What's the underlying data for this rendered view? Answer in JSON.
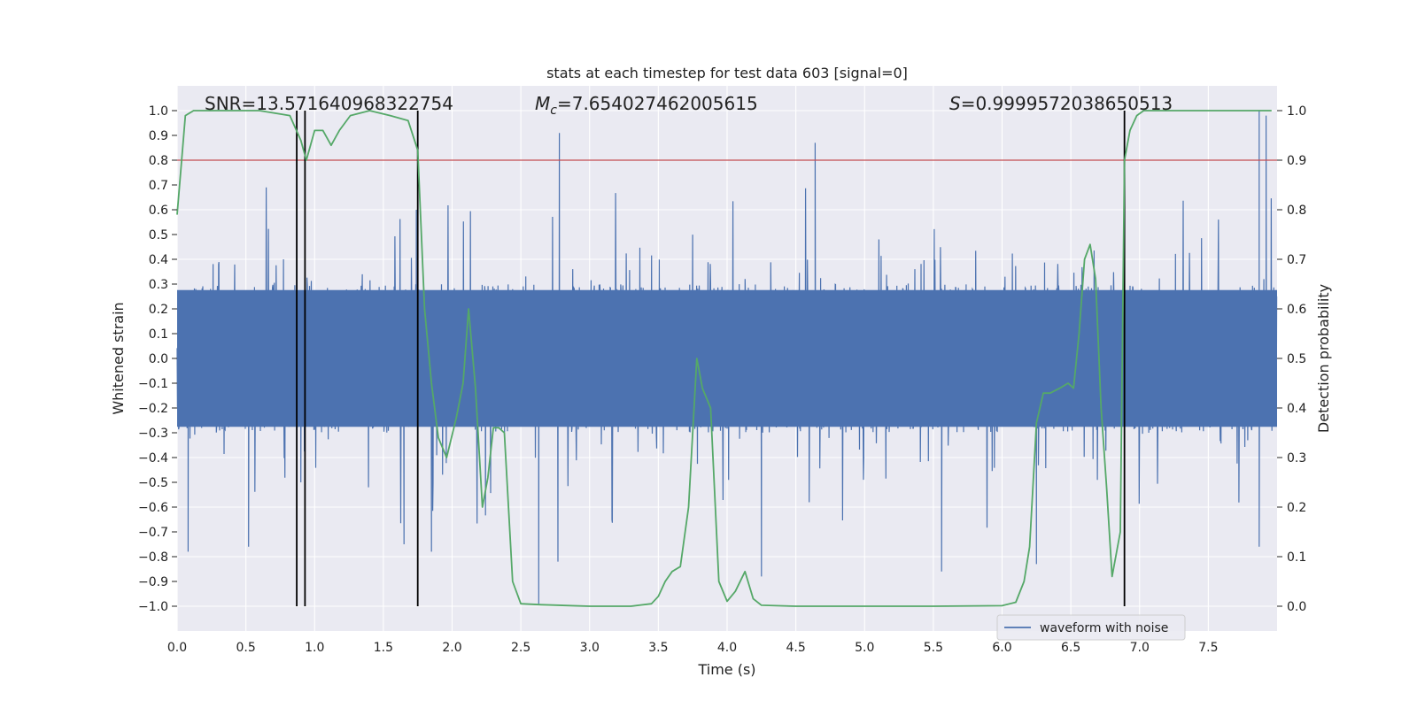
{
  "chart_data": {
    "type": "line",
    "title": "stats at each timestep for test data 603 [signal=0]",
    "xlabel": "Time (s)",
    "ylabel": "Whitened strain",
    "y2label": "Detection probability",
    "xlim": [
      0,
      8
    ],
    "ylim": [
      -1.1,
      1.1
    ],
    "y2lim": [
      -0.05,
      1.05
    ],
    "x_ticks": [
      "0.0",
      "0.5",
      "1.0",
      "1.5",
      "2.0",
      "2.5",
      "3.0",
      "3.5",
      "4.0",
      "4.5",
      "5.0",
      "5.5",
      "6.0",
      "6.5",
      "7.0",
      "7.5"
    ],
    "y_ticks": [
      "1.0",
      "0.9",
      "0.8",
      "0.7",
      "0.6",
      "0.5",
      "0.4",
      "0.3",
      "0.2",
      "0.1",
      "0.0",
      "−0.1",
      "−0.2",
      "−0.3",
      "−0.4",
      "−0.5",
      "−0.6",
      "−0.7",
      "−0.8",
      "−0.9",
      "−1.0"
    ],
    "y2_ticks": [
      "1.0",
      "0.9",
      "0.8",
      "0.7",
      "0.6",
      "0.5",
      "0.4",
      "0.3",
      "0.2",
      "0.1",
      "0.0"
    ],
    "grid": true,
    "legend_position": "bottom-right",
    "annotations": {
      "snr": "SNR=13.571640968322754",
      "mc_symbol": "M",
      "mc_sub": "c",
      "mc_value": "=7.654027462005615",
      "s_symbol": "S",
      "s_value": "=0.9999572038650513"
    },
    "threshold": {
      "value": 0.9,
      "axis": "y2",
      "color": "#c44e52"
    },
    "vertical_lines": [
      0.87,
      0.93,
      1.75,
      6.89
    ],
    "series": [
      {
        "name": "waveform with noise",
        "kind": "noise-waveform",
        "color": "#4c72b0",
        "axis": "y",
        "core_amplitude": 0.3,
        "spikes": [
          {
            "x": 0.87,
            "y": 0.74
          },
          {
            "x": 0.9,
            "y": -0.5
          },
          {
            "x": 1.74,
            "y": 0.6
          },
          {
            "x": 2.78,
            "y": 0.91
          },
          {
            "x": 2.63,
            "y": -0.99
          },
          {
            "x": 4.64,
            "y": 0.87
          },
          {
            "x": 7.87,
            "y": 1.0
          },
          {
            "x": 7.92,
            "y": 0.98
          },
          {
            "x": 0.08,
            "y": -0.78
          },
          {
            "x": 0.52,
            "y": -0.76
          },
          {
            "x": 1.65,
            "y": -0.75
          },
          {
            "x": 1.85,
            "y": -0.78
          },
          {
            "x": 4.25,
            "y": -0.88
          },
          {
            "x": 5.56,
            "y": -0.86
          },
          {
            "x": 7.87,
            "y": -0.76
          },
          {
            "x": 2.77,
            "y": -0.82
          },
          {
            "x": 6.25,
            "y": -0.83
          }
        ]
      },
      {
        "name": "detection probability",
        "kind": "line",
        "color": "#55a868",
        "axis": "y2",
        "x": [
          0.0,
          0.06,
          0.12,
          0.2,
          0.4,
          0.6,
          0.82,
          0.9,
          0.94,
          1.0,
          1.06,
          1.12,
          1.18,
          1.26,
          1.4,
          1.55,
          1.68,
          1.75,
          1.8,
          1.85,
          1.9,
          1.96,
          2.03,
          2.08,
          2.12,
          2.17,
          2.22,
          2.26,
          2.3,
          2.34,
          2.38,
          2.44,
          2.5,
          2.65,
          3.0,
          3.3,
          3.45,
          3.5,
          3.55,
          3.6,
          3.66,
          3.72,
          3.78,
          3.82,
          3.88,
          3.94,
          4.0,
          4.06,
          4.13,
          4.19,
          4.25,
          4.5,
          5.0,
          5.5,
          6.0,
          6.1,
          6.16,
          6.2,
          6.25,
          6.3,
          6.35,
          6.42,
          6.48,
          6.52,
          6.56,
          6.6,
          6.64,
          6.68,
          6.72,
          6.76,
          6.8,
          6.86,
          6.89,
          6.93,
          6.98,
          7.03,
          7.1,
          7.5,
          7.96
        ],
        "y": [
          0.79,
          0.99,
          1.0,
          1.0,
          1.0,
          1.0,
          0.99,
          0.94,
          0.9,
          0.96,
          0.96,
          0.93,
          0.96,
          0.99,
          1.0,
          0.99,
          0.98,
          0.92,
          0.6,
          0.45,
          0.34,
          0.3,
          0.38,
          0.45,
          0.6,
          0.44,
          0.2,
          0.26,
          0.36,
          0.36,
          0.35,
          0.05,
          0.005,
          0.003,
          0.0,
          0.0,
          0.005,
          0.02,
          0.05,
          0.07,
          0.08,
          0.2,
          0.5,
          0.44,
          0.4,
          0.05,
          0.01,
          0.03,
          0.07,
          0.015,
          0.002,
          0.0,
          0.0,
          0.0,
          0.001,
          0.008,
          0.05,
          0.12,
          0.37,
          0.43,
          0.43,
          0.44,
          0.45,
          0.44,
          0.55,
          0.7,
          0.73,
          0.66,
          0.4,
          0.24,
          0.06,
          0.15,
          0.9,
          0.96,
          0.99,
          1.0,
          1.0,
          1.0,
          1.0
        ]
      }
    ]
  }
}
